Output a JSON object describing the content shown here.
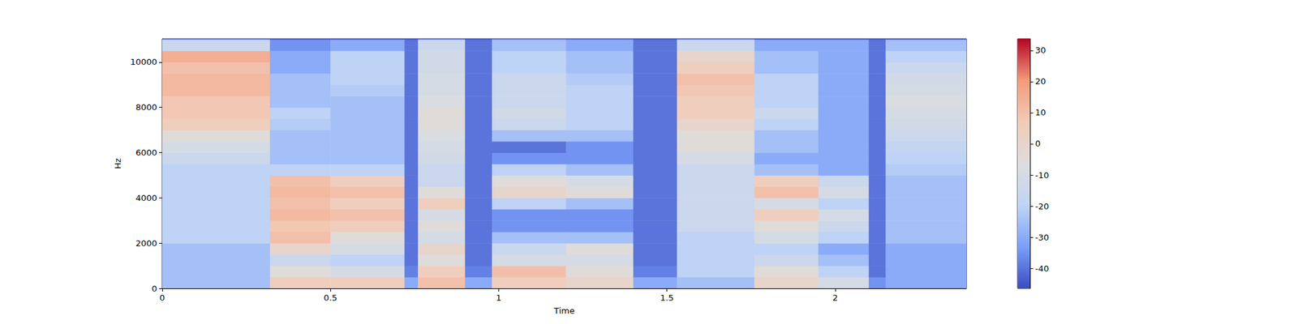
{
  "chart_data": {
    "type": "heatmap",
    "x_label": "Time",
    "y_label": "Hz",
    "xlim": [
      0,
      2.39
    ],
    "xticks": [
      0,
      0.5,
      1,
      1.5,
      2
    ],
    "ylim": [
      0,
      11025
    ],
    "yticks": [
      0,
      2000,
      4000,
      6000,
      8000,
      10000
    ],
    "grid": false,
    "x_edges": [
      0,
      0.32,
      0.5,
      0.72,
      0.76,
      0.9,
      0.98,
      1.2,
      1.4,
      1.53,
      1.76,
      1.95,
      2.1,
      2.15,
      2.39
    ],
    "y_edges": [
      0,
      500,
      1000,
      1500,
      2000,
      2500,
      3000,
      3500,
      4000,
      4500,
      5000,
      5500,
      6000,
      6500,
      7000,
      7500,
      8000,
      8500,
      9000,
      9500,
      10000,
      10500,
      11000,
      11025
    ],
    "values": [
      [
        -25,
        -25,
        -25,
        -25,
        -20,
        -20,
        -20,
        -20,
        -20,
        -20,
        -20,
        -15,
        -10,
        -5,
        5,
        8,
        8,
        12,
        12,
        10,
        15,
        -15,
        -40
      ],
      [
        5,
        -5,
        -15,
        0,
        10,
        8,
        12,
        10,
        12,
        10,
        -20,
        -25,
        -25,
        -25,
        -22,
        -20,
        -25,
        -25,
        -25,
        -30,
        -30,
        -35,
        -45
      ],
      [
        5,
        -10,
        -20,
        -10,
        -5,
        5,
        10,
        5,
        10,
        5,
        -20,
        -25,
        -25,
        -25,
        -25,
        -25,
        -25,
        -22,
        -20,
        -20,
        -20,
        -30,
        -45
      ],
      [
        -30,
        -38,
        -40,
        -40,
        -40,
        -40,
        -40,
        -40,
        -40,
        -40,
        -40,
        -40,
        -40,
        -40,
        -40,
        -40,
        -40,
        -40,
        -40,
        -40,
        -40,
        -40,
        -45
      ],
      [
        10,
        5,
        -5,
        0,
        -10,
        -5,
        -10,
        5,
        -5,
        -15,
        -15,
        -12,
        -10,
        -8,
        -5,
        -5,
        -8,
        -10,
        -10,
        -12,
        -12,
        -15,
        -40
      ],
      [
        -30,
        -38,
        -40,
        -40,
        -40,
        -40,
        -40,
        -40,
        -40,
        -40,
        -40,
        -40,
        -40,
        -40,
        -40,
        -40,
        -40,
        -40,
        -40,
        -40,
        -40,
        -40,
        -45
      ],
      [
        5,
        10,
        -10,
        -15,
        -25,
        -35,
        -35,
        -20,
        0,
        -5,
        -20,
        -35,
        -40,
        -25,
        -15,
        -12,
        -15,
        -15,
        -15,
        -20,
        -20,
        -25,
        -40
      ],
      [
        0,
        -5,
        -10,
        -5,
        -25,
        -35,
        -35,
        -25,
        -5,
        -10,
        -25,
        -35,
        -35,
        -25,
        -20,
        -20,
        -20,
        -20,
        -22,
        -25,
        -25,
        -30,
        -42
      ],
      [
        -30,
        -38,
        -40,
        -40,
        -40,
        -40,
        -40,
        -40,
        -40,
        -40,
        -40,
        -40,
        -40,
        -40,
        -40,
        -40,
        -40,
        -40,
        -40,
        -40,
        -40,
        -40,
        -45
      ],
      [
        -25,
        -20,
        -20,
        -20,
        -20,
        -15,
        -15,
        -15,
        -15,
        -15,
        -15,
        -10,
        -5,
        -5,
        0,
        5,
        5,
        8,
        10,
        5,
        0,
        -15,
        -40
      ],
      [
        0,
        -5,
        -15,
        -20,
        -10,
        -5,
        5,
        -10,
        10,
        5,
        -25,
        -30,
        -25,
        -25,
        -20,
        -15,
        -20,
        -20,
        -20,
        -25,
        -25,
        -30,
        -45
      ],
      [
        -10,
        -20,
        -25,
        -30,
        -20,
        -15,
        -10,
        -20,
        -10,
        -15,
        -30,
        -30,
        -30,
        -30,
        -30,
        -30,
        -30,
        -30,
        -30,
        -30,
        -30,
        -30,
        -45
      ],
      [
        -35,
        -40,
        -40,
        -40,
        -40,
        -40,
        -40,
        -40,
        -40,
        -40,
        -40,
        -40,
        -40,
        -40,
        -40,
        -40,
        -40,
        -40,
        -40,
        -40,
        -40,
        -40,
        -45
      ],
      [
        -30,
        -30,
        -30,
        -30,
        -25,
        -25,
        -25,
        -25,
        -25,
        -25,
        -22,
        -20,
        -18,
        -15,
        -12,
        -10,
        -8,
        -10,
        -12,
        -15,
        -20,
        -25,
        -45
      ]
    ],
    "colorbar_lim": [
      -46.4,
      33.7
    ],
    "colorbar_ticks": [
      -40,
      -30,
      -20,
      -10,
      0,
      10,
      20,
      30
    ]
  }
}
